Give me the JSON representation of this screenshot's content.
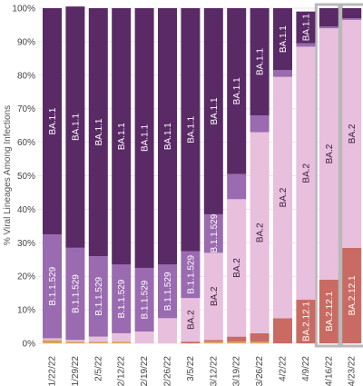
{
  "chart_data": {
    "type": "bar",
    "stacked": true,
    "ylabel": "% Viral Lineages Among Infections",
    "ylim": [
      0,
      100
    ],
    "yticks": [
      "0%",
      "10%",
      "20%",
      "30%",
      "40%",
      "50%",
      "60%",
      "70%",
      "80%",
      "90%",
      "100%"
    ],
    "grid": true,
    "categories": [
      "1/22/22",
      "1/29/22",
      "2/5/22",
      "2/12/22",
      "2/19/22",
      "2/26/22",
      "3/5/22",
      "3/12/22",
      "3/19/22",
      "3/26/22",
      "4/2/22",
      "4/9/22",
      "4/16/22",
      "4/23/22"
    ],
    "highlighted_categories": [
      "4/16/22",
      "4/23/22"
    ],
    "series": [
      {
        "key": "other_bottom",
        "color": "#d9a35a",
        "values": [
          1,
          0.5,
          0.5,
          0.5,
          0,
          0,
          0,
          0.5,
          0.5,
          0.5,
          0,
          0,
          0,
          0
        ]
      },
      {
        "key": "ba2121",
        "name": "BA.2.12.1",
        "color": "#c96b63",
        "values": [
          0,
          0,
          0,
          0,
          0,
          0,
          0.5,
          0.5,
          1.5,
          2.5,
          7.5,
          13,
          19,
          28.5
        ]
      },
      {
        "key": "ba2",
        "name": "BA.2",
        "color": "#e8bfdd",
        "values": [
          0.5,
          0.5,
          1.5,
          2.5,
          3.5,
          7.5,
          13,
          26,
          41,
          60,
          72,
          75.5,
          75,
          68
        ]
      },
      {
        "key": "b11529",
        "name": "B.1.1.529",
        "color": "#9a6bb0",
        "values": [
          31,
          27.5,
          24,
          20.5,
          19,
          16,
          14,
          11.5,
          7.5,
          5,
          2,
          1,
          0.5,
          0.5
        ]
      },
      {
        "key": "ba11",
        "name": "BA.1.1",
        "color": "#5a2a66",
        "values": [
          67.5,
          72,
          74,
          76.5,
          77.5,
          76.5,
          72.5,
          61.5,
          49.5,
          32,
          18.5,
          9.5,
          5.5,
          3
        ]
      }
    ],
    "segment_labels": [
      {
        "series": "b11529",
        "categories": [
          "1/22/22",
          "1/29/22",
          "2/5/22",
          "2/12/22",
          "2/19/22",
          "2/26/22",
          "3/5/22",
          "3/12/22"
        ]
      },
      {
        "series": "ba11",
        "categories": [
          "1/22/22",
          "1/29/22",
          "2/5/22",
          "2/12/22",
          "2/19/22",
          "2/26/22",
          "3/5/22",
          "3/12/22",
          "3/19/22",
          "3/26/22",
          "4/2/22",
          "4/9/22"
        ]
      },
      {
        "series": "ba2",
        "categories": [
          "3/5/22",
          "3/12/22",
          "3/19/22",
          "3/26/22",
          "4/2/22",
          "4/9/22",
          "4/16/22",
          "4/23/22"
        ]
      },
      {
        "series": "ba2121",
        "categories": [
          "4/9/22",
          "4/16/22",
          "4/23/22"
        ]
      }
    ],
    "colors": {
      "grid": "#e6e6e6",
      "highlight_border": "#b8b8b8",
      "label_on_dark": "#ffffff",
      "label_on_light": "#3a2140"
    }
  }
}
